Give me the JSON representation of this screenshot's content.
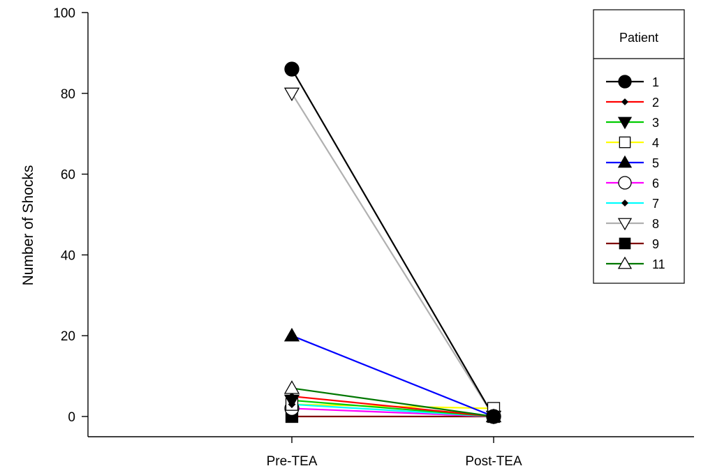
{
  "chart_data": {
    "type": "line",
    "categories": [
      "Pre-TEA",
      "Post-TEA"
    ],
    "xlabel": "",
    "ylabel": "Number of Shocks",
    "ylim": [
      0,
      100
    ],
    "yticks": [
      0,
      20,
      40,
      60,
      80,
      100
    ],
    "grid": false,
    "legend": {
      "title": "Patient",
      "placement": "top-right"
    },
    "series": [
      {
        "name": "1",
        "values": [
          86,
          0
        ],
        "color": "#000000",
        "marker": "circle",
        "fill": "#000000"
      },
      {
        "name": "2",
        "values": [
          5,
          0
        ],
        "color": "#ff0000",
        "marker": "small-diamond",
        "fill": "#000000"
      },
      {
        "name": "3",
        "values": [
          4,
          0
        ],
        "color": "#00cc00",
        "marker": "triangle-down",
        "fill": "#000000"
      },
      {
        "name": "4",
        "values": [
          3,
          2
        ],
        "color": "#ffff00",
        "marker": "square",
        "fill": "#ffffff"
      },
      {
        "name": "5",
        "values": [
          20,
          0
        ],
        "color": "#0000ff",
        "marker": "triangle-up",
        "fill": "#000000"
      },
      {
        "name": "6",
        "values": [
          2,
          0
        ],
        "color": "#ff00ff",
        "marker": "circle",
        "fill": "#ffffff"
      },
      {
        "name": "7",
        "values": [
          3,
          0
        ],
        "color": "#00ffff",
        "marker": "small-diamond",
        "fill": "#000000"
      },
      {
        "name": "8",
        "values": [
          80,
          0
        ],
        "color": "#b0b0b0",
        "marker": "triangle-down",
        "fill": "#ffffff"
      },
      {
        "name": "9",
        "values": [
          0,
          0
        ],
        "color": "#800000",
        "marker": "square",
        "fill": "#000000"
      },
      {
        "name": "11",
        "values": [
          7,
          0
        ],
        "color": "#007700",
        "marker": "triangle-up",
        "fill": "#ffffff"
      }
    ]
  }
}
